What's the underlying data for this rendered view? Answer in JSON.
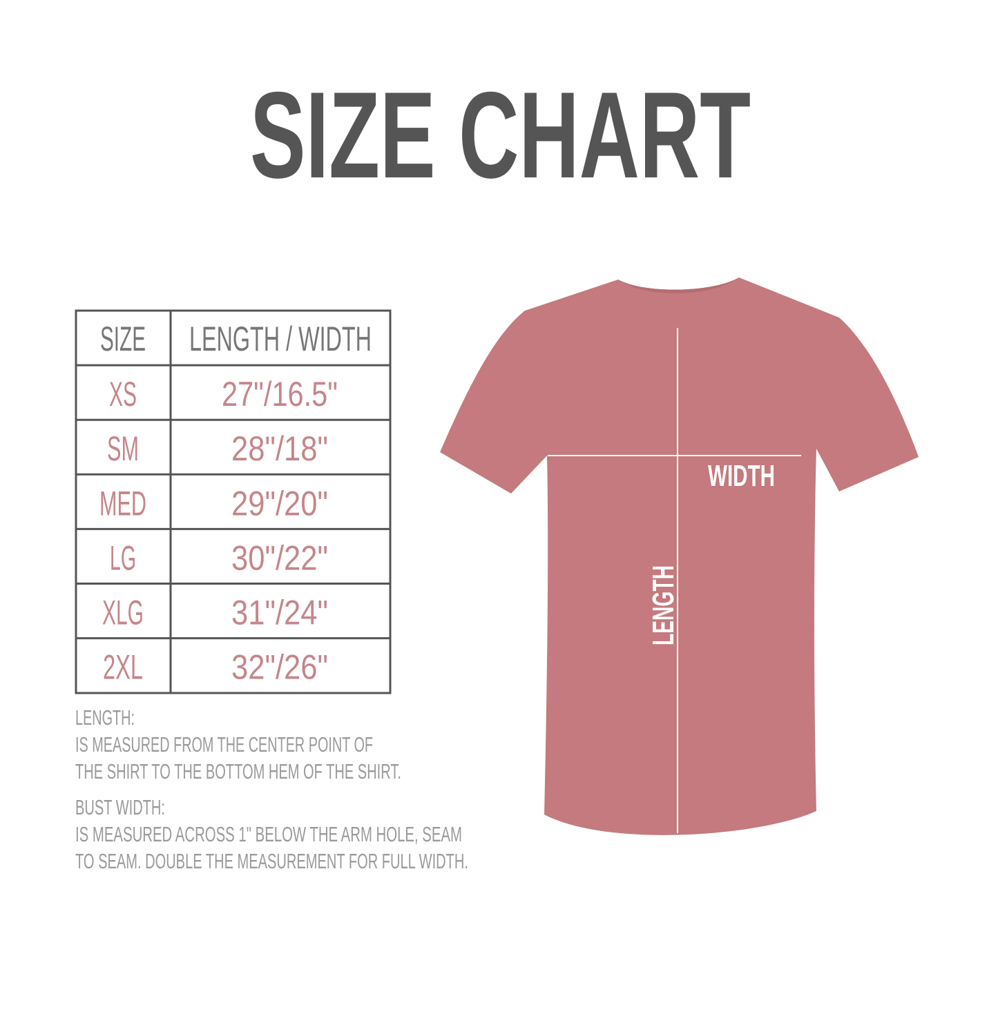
{
  "title": "SIZE CHART",
  "colors": {
    "title": "#555555",
    "header_text": "#777777",
    "value_text": "#c4868a",
    "notes_text": "#9a9a9a",
    "table_border": "#555555",
    "shirt": "#c47a7e",
    "measure_lines": "#ffffff"
  },
  "table": {
    "headers": [
      "SIZE",
      "LENGTH / WIDTH"
    ],
    "rows": [
      {
        "size": "XS",
        "measure": "27\"/16.5\""
      },
      {
        "size": "SM",
        "measure": "28\"/18\""
      },
      {
        "size": "MED",
        "measure": "29\"/20\""
      },
      {
        "size": "LG",
        "measure": "30\"/22\""
      },
      {
        "size": "XLG",
        "measure": "31\"/24\""
      },
      {
        "size": "2XL",
        "measure": "32\"/26\""
      }
    ]
  },
  "notes": {
    "length_heading": "LENGTH:",
    "length_lines": [
      "IS MEASURED FROM THE CENTER POINT OF",
      "THE SHIRT TO THE BOTTOM HEM OF THE SHIRT."
    ],
    "width_heading": "BUST WIDTH:",
    "width_lines": [
      "IS MEASURED ACROSS  1\" BELOW THE ARM HOLE, SEAM",
      "TO SEAM. DOUBLE THE MEASUREMENT FOR FULL WIDTH."
    ]
  },
  "shirt": {
    "width_label": "WIDTH",
    "length_label": "LENGTH"
  }
}
